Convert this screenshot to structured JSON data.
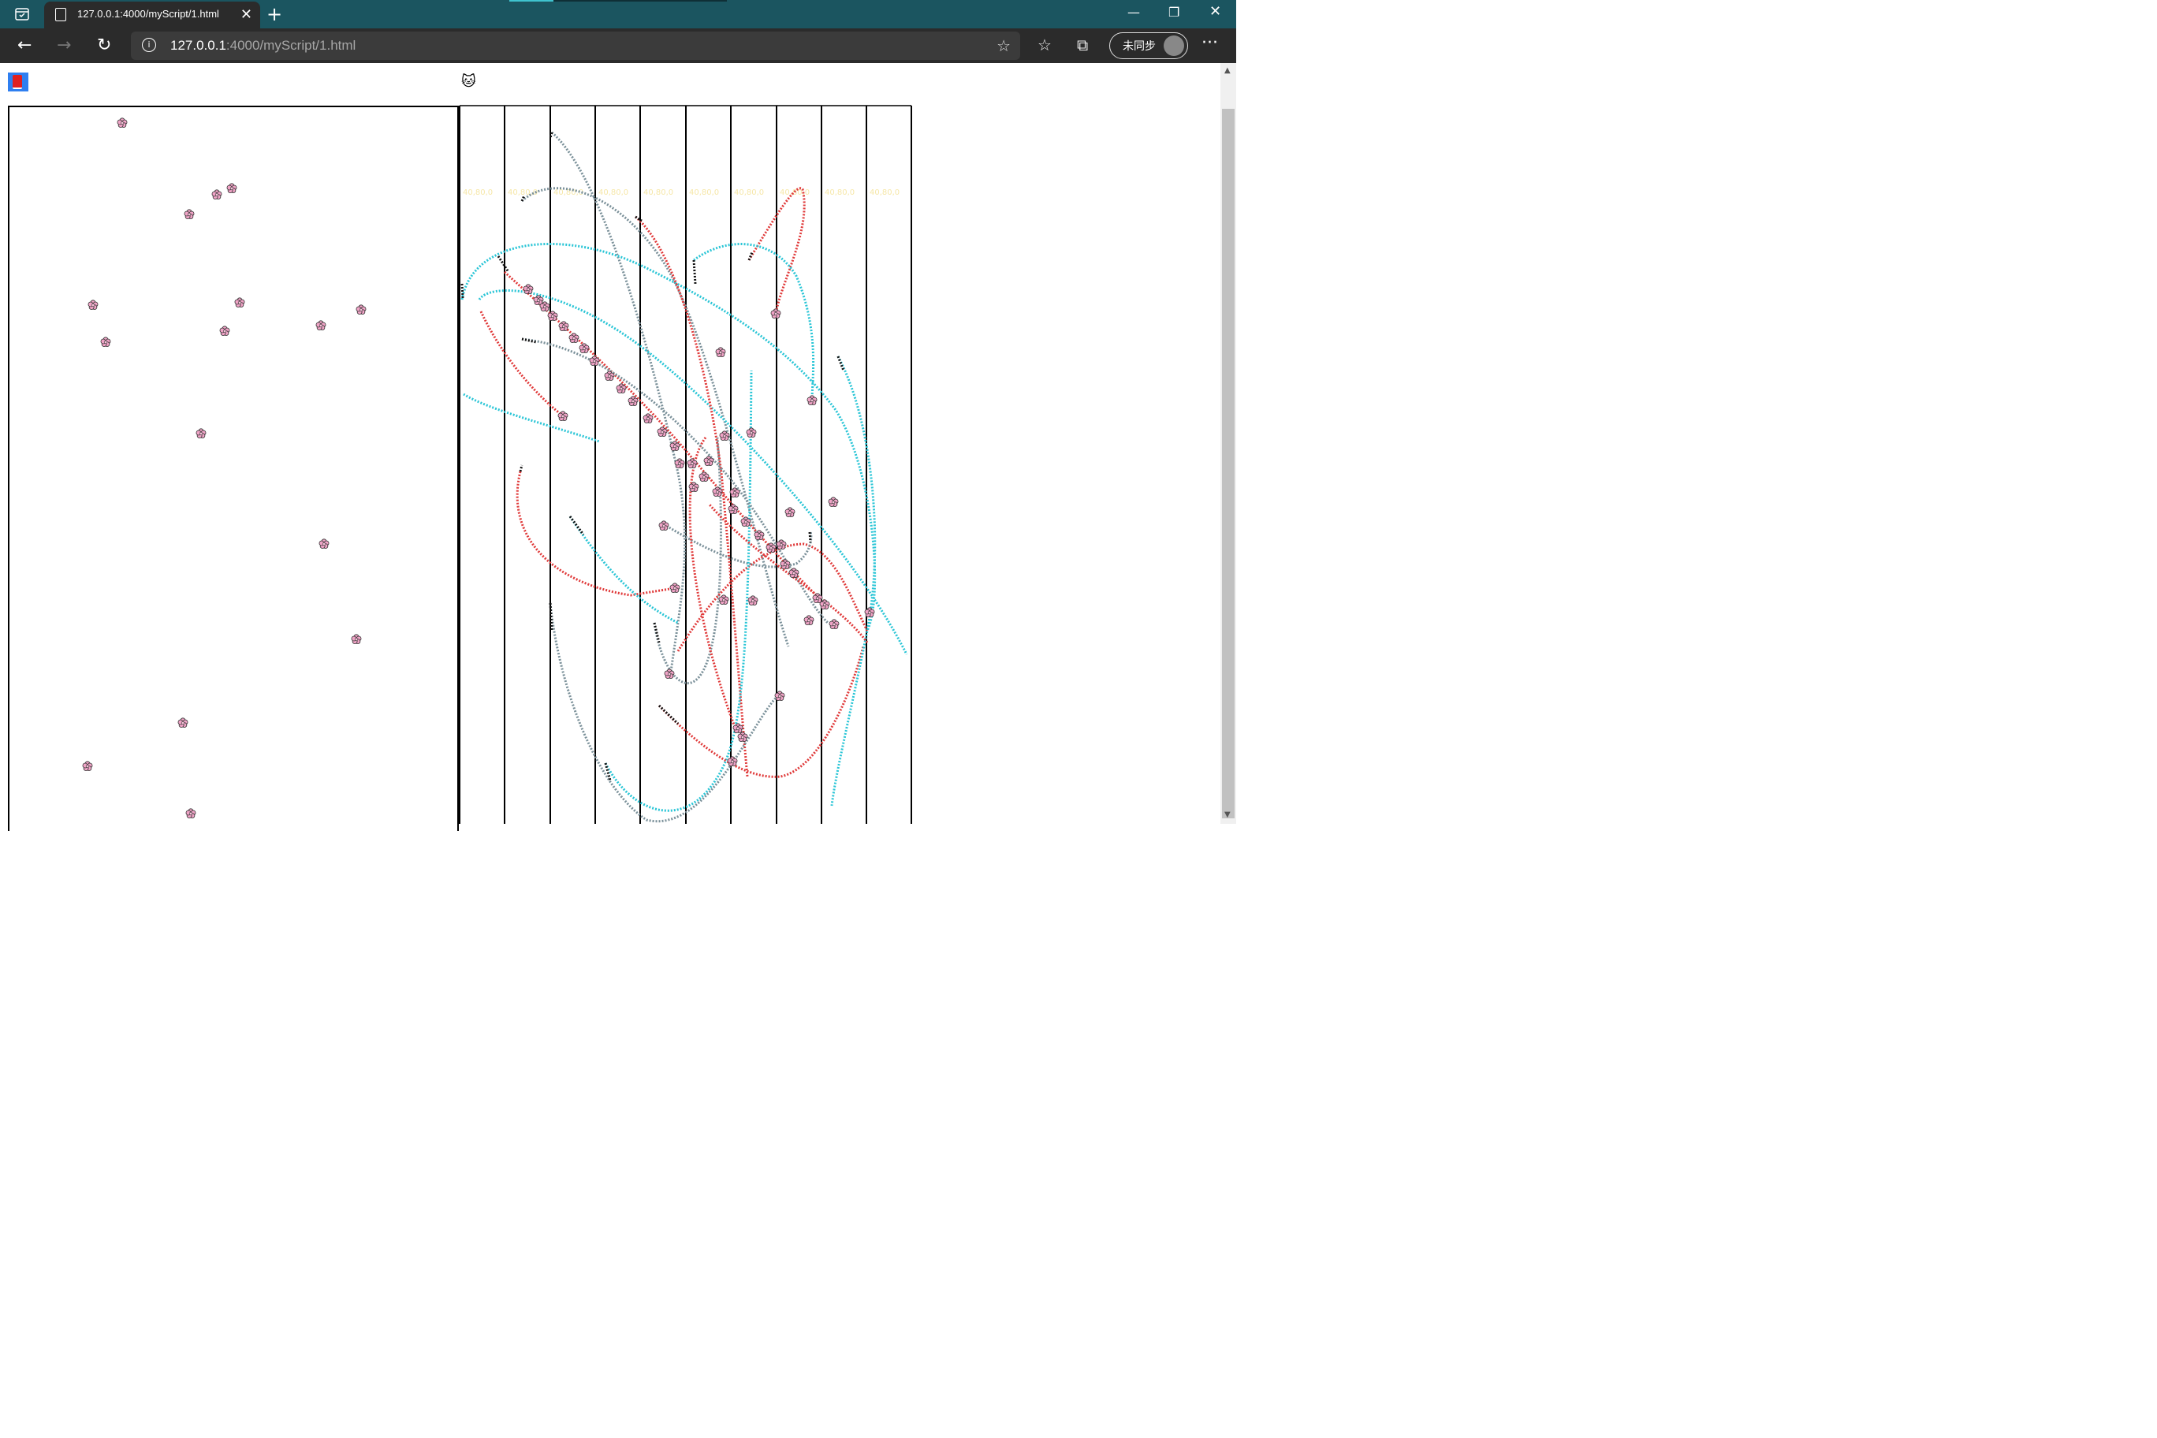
{
  "browser": {
    "tab_title": "127.0.0.1:4000/myScript/1.html",
    "url_host": "127.0.0.1",
    "url_rest": ":4000/myScript/1.html",
    "profile_label": "未同步",
    "new_tab": "+",
    "close_tab": "✕",
    "more": "···"
  },
  "page": {
    "book_icon": "book-icon",
    "cat_icon": "cat-face-icon",
    "cat_glyph": "🐱",
    "column_label": "40,80,0",
    "column_count": 10,
    "flower_icon": "flower-icon"
  },
  "colors": {
    "teal": "#29c5d6",
    "red": "#e03a3a",
    "slate": "#7a9099",
    "magenta": "#ff22ee",
    "flower": "#f0a3c6"
  }
}
